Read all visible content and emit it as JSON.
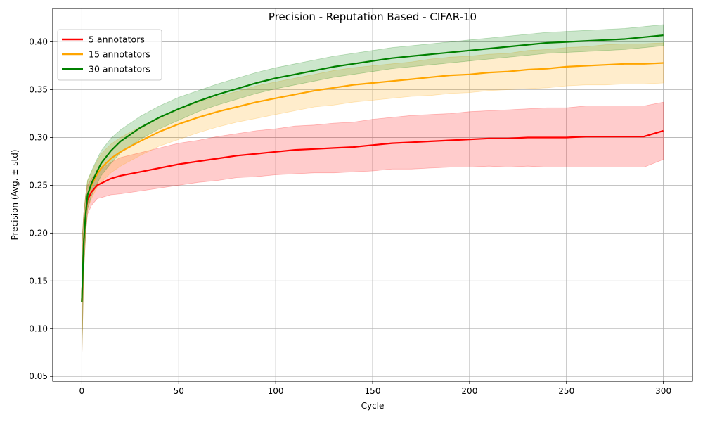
{
  "chart_data": {
    "type": "line",
    "title": "Precision - Reputation Based - CIFAR-10",
    "xlabel": "Cycle",
    "ylabel": "Precision (Avg. ± std)",
    "xlim": [
      -15,
      315
    ],
    "ylim": [
      0.045,
      0.435
    ],
    "x_ticks": [
      0,
      50,
      100,
      150,
      200,
      250,
      300
    ],
    "y_ticks": [
      0.05,
      0.1,
      0.15,
      0.2,
      0.25,
      0.3,
      0.35,
      0.4
    ],
    "grid": true,
    "legend_position": "top-left",
    "series": [
      {
        "name": "5 annotators",
        "color": "#ff0000",
        "x": [
          0,
          1,
          2,
          3,
          5,
          8,
          10,
          15,
          20,
          30,
          40,
          50,
          60,
          70,
          80,
          90,
          100,
          110,
          120,
          130,
          140,
          150,
          160,
          170,
          180,
          190,
          200,
          210,
          220,
          230,
          240,
          250,
          260,
          270,
          280,
          290,
          300
        ],
        "y": [
          0.128,
          0.19,
          0.22,
          0.235,
          0.243,
          0.25,
          0.252,
          0.257,
          0.26,
          0.264,
          0.268,
          0.272,
          0.275,
          0.278,
          0.281,
          0.283,
          0.285,
          0.287,
          0.288,
          0.289,
          0.29,
          0.292,
          0.294,
          0.295,
          0.296,
          0.297,
          0.298,
          0.299,
          0.299,
          0.3,
          0.3,
          0.3,
          0.301,
          0.301,
          0.301,
          0.301,
          0.307
        ],
        "std": [
          0.06,
          0.03,
          0.02,
          0.015,
          0.014,
          0.014,
          0.015,
          0.017,
          0.019,
          0.02,
          0.021,
          0.022,
          0.022,
          0.023,
          0.023,
          0.024,
          0.024,
          0.025,
          0.025,
          0.026,
          0.026,
          0.027,
          0.027,
          0.028,
          0.028,
          0.028,
          0.029,
          0.029,
          0.03,
          0.03,
          0.031,
          0.031,
          0.032,
          0.032,
          0.032,
          0.032,
          0.03
        ]
      },
      {
        "name": "15 annotators",
        "color": "#ffa500",
        "x": [
          0,
          1,
          2,
          3,
          5,
          8,
          10,
          15,
          20,
          30,
          40,
          50,
          60,
          70,
          80,
          90,
          100,
          110,
          120,
          130,
          140,
          150,
          160,
          170,
          180,
          190,
          200,
          210,
          220,
          230,
          240,
          250,
          260,
          270,
          280,
          290,
          300
        ],
        "y": [
          0.128,
          0.19,
          0.22,
          0.24,
          0.25,
          0.262,
          0.268,
          0.278,
          0.285,
          0.296,
          0.306,
          0.314,
          0.321,
          0.327,
          0.332,
          0.337,
          0.341,
          0.345,
          0.349,
          0.352,
          0.355,
          0.357,
          0.359,
          0.361,
          0.363,
          0.365,
          0.366,
          0.368,
          0.369,
          0.371,
          0.372,
          0.374,
          0.375,
          0.376,
          0.377,
          0.377,
          0.378
        ],
        "std": [
          0.06,
          0.03,
          0.02,
          0.015,
          0.014,
          0.014,
          0.015,
          0.015,
          0.015,
          0.015,
          0.015,
          0.016,
          0.016,
          0.016,
          0.016,
          0.017,
          0.017,
          0.017,
          0.017,
          0.018,
          0.018,
          0.018,
          0.018,
          0.018,
          0.019,
          0.019,
          0.019,
          0.019,
          0.019,
          0.02,
          0.02,
          0.02,
          0.02,
          0.021,
          0.021,
          0.021,
          0.021
        ]
      },
      {
        "name": "30 annotators",
        "color": "#008000",
        "x": [
          0,
          1,
          2,
          3,
          5,
          8,
          10,
          15,
          20,
          30,
          40,
          50,
          60,
          70,
          80,
          90,
          100,
          110,
          120,
          130,
          140,
          150,
          160,
          170,
          180,
          190,
          200,
          210,
          220,
          230,
          240,
          250,
          260,
          270,
          280,
          290,
          300
        ],
        "y": [
          0.128,
          0.19,
          0.22,
          0.24,
          0.252,
          0.265,
          0.273,
          0.286,
          0.296,
          0.31,
          0.321,
          0.33,
          0.338,
          0.345,
          0.351,
          0.357,
          0.362,
          0.366,
          0.37,
          0.374,
          0.377,
          0.38,
          0.383,
          0.385,
          0.387,
          0.389,
          0.391,
          0.393,
          0.395,
          0.397,
          0.399,
          0.4,
          0.401,
          0.402,
          0.403,
          0.405,
          0.407
        ],
        "std": [
          0.06,
          0.03,
          0.02,
          0.015,
          0.013,
          0.013,
          0.013,
          0.013,
          0.012,
          0.012,
          0.012,
          0.012,
          0.011,
          0.011,
          0.011,
          0.011,
          0.011,
          0.011,
          0.011,
          0.011,
          0.011,
          0.011,
          0.011,
          0.011,
          0.011,
          0.011,
          0.011,
          0.011,
          0.011,
          0.011,
          0.011,
          0.011,
          0.011,
          0.011,
          0.011,
          0.011,
          0.011
        ]
      }
    ]
  }
}
